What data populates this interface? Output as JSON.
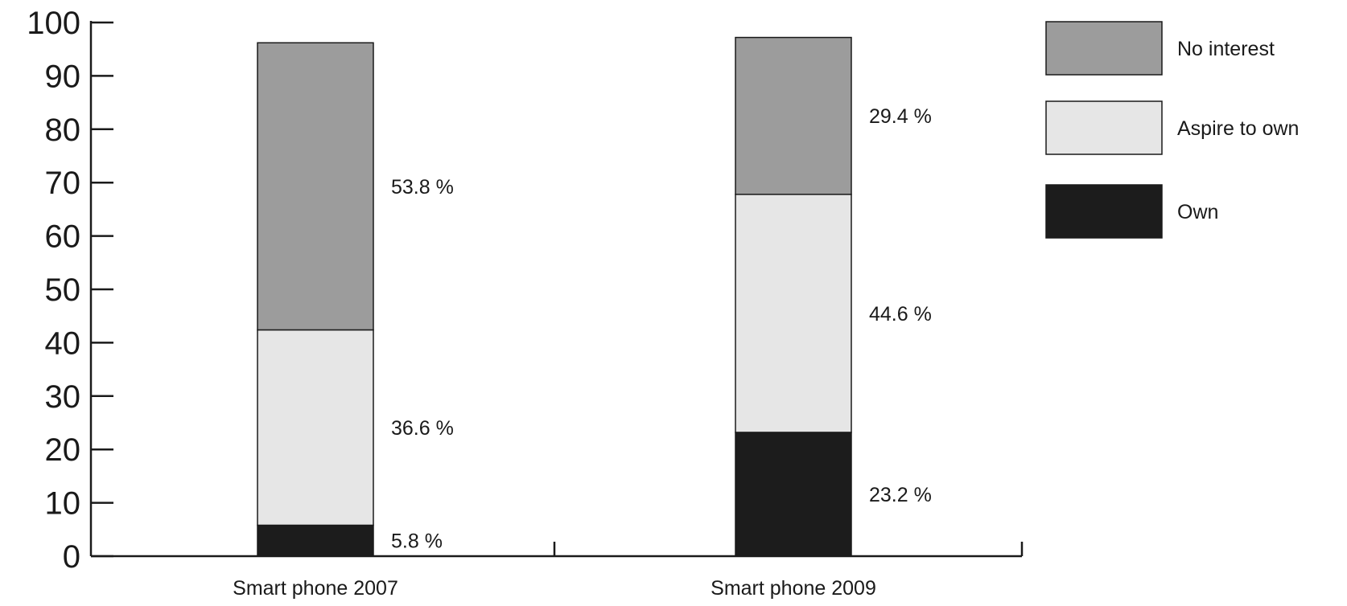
{
  "chart_data": {
    "type": "bar",
    "stacked": true,
    "categories": [
      "Smart phone 2007",
      "Smart phone 2009"
    ],
    "series": [
      {
        "name": "Own",
        "values": [
          5.8,
          23.2
        ],
        "labels": [
          "5.8 %",
          "23.2 %"
        ],
        "color": "#1c1c1c"
      },
      {
        "name": "Aspire to own",
        "values": [
          36.6,
          44.6
        ],
        "labels": [
          "36.6 %",
          "44.6 %"
        ],
        "color": "#e6e6e6"
      },
      {
        "name": "No interest",
        "values": [
          53.8,
          29.4
        ],
        "labels": [
          "53.8 %",
          "29.4 %"
        ],
        "color": "#9c9c9c"
      }
    ],
    "ylim": [
      0,
      100
    ],
    "yticks": [
      "0",
      "10",
      "20",
      "30",
      "40",
      "50",
      "60",
      "70",
      "80",
      "90",
      "100"
    ],
    "legend": {
      "placement": "top-right",
      "order": [
        "No interest",
        "Aspire to own",
        "Own"
      ]
    },
    "grid": false
  }
}
